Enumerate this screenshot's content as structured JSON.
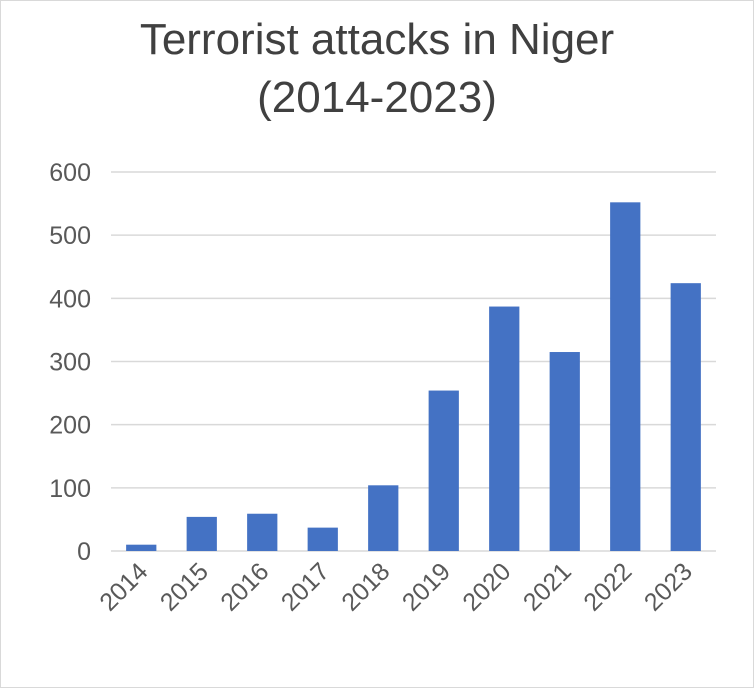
{
  "chart_data": {
    "type": "bar",
    "title_lines": [
      "Terrorist attacks in Niger",
      "(2014-2023)"
    ],
    "xlabel": "",
    "ylabel": "",
    "categories": [
      "2014",
      "2015",
      "2016",
      "2017",
      "2018",
      "2019",
      "2020",
      "2021",
      "2022",
      "2023"
    ],
    "values": [
      10,
      54,
      59,
      37,
      104,
      254,
      387,
      315,
      552,
      424
    ],
    "ylim": [
      0,
      600
    ],
    "yticks": [
      0,
      100,
      200,
      300,
      400,
      500,
      600
    ],
    "grid": true,
    "legend": "none",
    "bar_color": "#4472C4"
  }
}
